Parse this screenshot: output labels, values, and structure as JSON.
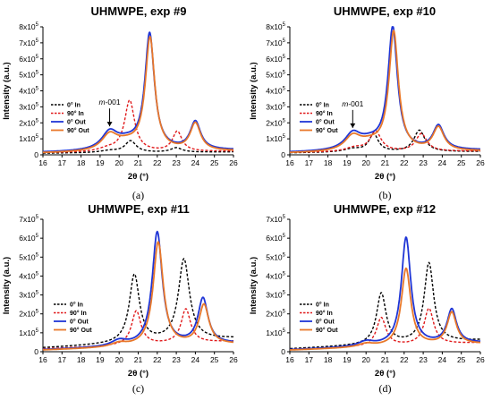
{
  "chart_data": [
    {
      "type": "line",
      "title": "UHMWPE, exp #9",
      "caption": "(a)",
      "xlabel": "2θ (°)",
      "ylabel": "Intensity (a.u.)",
      "xlim": [
        16,
        26
      ],
      "ylim": [
        0,
        800000
      ],
      "x_ticks": [
        "16",
        "17",
        "18",
        "19",
        "20",
        "21",
        "22",
        "23",
        "24",
        "25",
        "26"
      ],
      "y_ticks": [
        {
          "value": 0,
          "mant": "0",
          "exp": ""
        },
        {
          "value": 100000,
          "mant": "1x10",
          "exp": "5"
        },
        {
          "value": 200000,
          "mant": "2x10",
          "exp": "5"
        },
        {
          "value": 300000,
          "mant": "3x10",
          "exp": "5"
        },
        {
          "value": 400000,
          "mant": "4x10",
          "exp": "5"
        },
        {
          "value": 500000,
          "mant": "5x10",
          "exp": "5"
        },
        {
          "value": 600000,
          "mant": "6x10",
          "exp": "5"
        },
        {
          "value": 700000,
          "mant": "7x10",
          "exp": "5"
        },
        {
          "value": 800000,
          "mant": "8x10",
          "exp": "5"
        }
      ],
      "annotation": {
        "text": "m-001",
        "x": 19.5
      },
      "series": [
        {
          "name": "0° In",
          "color": "#000000",
          "dashed": true,
          "base": 10000,
          "baseSlope": 800,
          "peaks": [
            [
              19.5,
              12000,
              0.6
            ],
            [
              20.6,
              72000,
              0.35
            ],
            [
              23.0,
              28000,
              0.35
            ]
          ]
        },
        {
          "name": "90° In",
          "color": "#e0191a",
          "dashed": true,
          "base": 12000,
          "baseSlope": 1000,
          "peaks": [
            [
              19.4,
              20000,
              0.6
            ],
            [
              20.55,
              320000,
              0.32
            ],
            [
              23.05,
              125000,
              0.3
            ]
          ]
        },
        {
          "name": "0° Out",
          "color": "#1f35d6",
          "dashed": false,
          "base": 14000,
          "baseSlope": 1400,
          "peaks": [
            [
              19.5,
              105000,
              0.5
            ],
            [
              20.4,
              50000,
              0.8
            ],
            [
              21.6,
              720000,
              0.3
            ],
            [
              24.0,
              175000,
              0.33
            ]
          ]
        },
        {
          "name": "90° Out",
          "color": "#e8782a",
          "dashed": false,
          "base": 10000,
          "baseSlope": 1200,
          "peaks": [
            [
              19.5,
              95000,
              0.5
            ],
            [
              20.4,
              45000,
              0.8
            ],
            [
              21.62,
              700000,
              0.3
            ],
            [
              24.0,
              170000,
              0.33
            ]
          ]
        }
      ]
    },
    {
      "type": "line",
      "title": "UHMWPE, exp #10",
      "caption": "(b)",
      "xlabel": "2θ (°)",
      "ylabel": "Intensity (a.u.)",
      "xlim": [
        16,
        26
      ],
      "ylim": [
        0,
        800000
      ],
      "x_ticks": [
        "16",
        "17",
        "18",
        "19",
        "20",
        "21",
        "22",
        "23",
        "24",
        "25",
        "26"
      ],
      "y_ticks": [
        {
          "value": 0,
          "mant": "0",
          "exp": ""
        },
        {
          "value": 100000,
          "mant": "1x10",
          "exp": "5"
        },
        {
          "value": 200000,
          "mant": "2x10",
          "exp": "5"
        },
        {
          "value": 300000,
          "mant": "3x10",
          "exp": "5"
        },
        {
          "value": 400000,
          "mant": "4x10",
          "exp": "5"
        },
        {
          "value": 500000,
          "mant": "5x10",
          "exp": "5"
        },
        {
          "value": 600000,
          "mant": "6x10",
          "exp": "5"
        },
        {
          "value": 700000,
          "mant": "7x10",
          "exp": "5"
        },
        {
          "value": 800000,
          "mant": "8x10",
          "exp": "5"
        }
      ],
      "annotation": {
        "text": "m-001",
        "x": 19.3
      },
      "series": [
        {
          "name": "0° In",
          "color": "#000000",
          "dashed": true,
          "base": 12000,
          "baseSlope": 800,
          "peaks": [
            [
              19.3,
              20000,
              0.6
            ],
            [
              20.4,
              110000,
              0.3
            ],
            [
              22.8,
              135000,
              0.35
            ]
          ]
        },
        {
          "name": "90° In",
          "color": "#e0191a",
          "dashed": true,
          "base": 14000,
          "baseSlope": 900,
          "peaks": [
            [
              19.4,
              25000,
              0.6
            ],
            [
              20.5,
              125000,
              0.35
            ],
            [
              22.9,
              110000,
              0.35
            ]
          ]
        },
        {
          "name": "0° Out",
          "color": "#1f35d6",
          "dashed": false,
          "base": 14000,
          "baseSlope": 1400,
          "peaks": [
            [
              19.3,
              95000,
              0.5
            ],
            [
              20.2,
              50000,
              0.8
            ],
            [
              21.4,
              760000,
              0.3
            ],
            [
              23.8,
              150000,
              0.35
            ]
          ]
        },
        {
          "name": "90° Out",
          "color": "#e8782a",
          "dashed": false,
          "base": 10000,
          "baseSlope": 1200,
          "peaks": [
            [
              19.3,
              85000,
              0.5
            ],
            [
              20.2,
              45000,
              0.8
            ],
            [
              21.45,
              740000,
              0.3
            ],
            [
              23.8,
              145000,
              0.35
            ]
          ]
        }
      ]
    },
    {
      "type": "line",
      "title": "UHMWPE, exp #11",
      "caption": "(c)",
      "xlabel": "2θ (°)",
      "ylabel": "Intensity (a.u.)",
      "xlim": [
        16,
        26
      ],
      "ylim": [
        0,
        700000
      ],
      "x_ticks": [
        "16",
        "17",
        "18",
        "19",
        "20",
        "21",
        "22",
        "23",
        "24",
        "25",
        "26"
      ],
      "y_ticks": [
        {
          "value": 0,
          "mant": "0",
          "exp": ""
        },
        {
          "value": 100000,
          "mant": "1x10",
          "exp": "5"
        },
        {
          "value": 200000,
          "mant": "2x10",
          "exp": "5"
        },
        {
          "value": 300000,
          "mant": "3x10",
          "exp": "5"
        },
        {
          "value": 400000,
          "mant": "4x10",
          "exp": "5"
        },
        {
          "value": 500000,
          "mant": "5x10",
          "exp": "5"
        },
        {
          "value": 600000,
          "mant": "6x10",
          "exp": "5"
        },
        {
          "value": 700000,
          "mant": "7x10",
          "exp": "5"
        }
      ],
      "series": [
        {
          "name": "0° In",
          "color": "#000000",
          "dashed": true,
          "base": 20000,
          "baseSlope": 5000,
          "peaks": [
            [
              20.8,
              360000,
              0.32
            ],
            [
              23.4,
              430000,
              0.35
            ]
          ]
        },
        {
          "name": "90° In",
          "color": "#e0191a",
          "dashed": true,
          "base": 15000,
          "baseSlope": 4000,
          "peaks": [
            [
              20.9,
              180000,
              0.3
            ],
            [
              23.5,
              180000,
              0.3
            ]
          ]
        },
        {
          "name": "0° Out",
          "color": "#1f35d6",
          "dashed": false,
          "base": 10000,
          "baseSlope": 3200,
          "peaks": [
            [
              20.0,
              30000,
              0.5
            ],
            [
              22.0,
              600000,
              0.32
            ],
            [
              24.4,
              240000,
              0.32
            ]
          ]
        },
        {
          "name": "90° Out",
          "color": "#e8782a",
          "dashed": false,
          "base": 8000,
          "baseSlope": 3000,
          "peaks": [
            [
              20.0,
              20000,
              0.5
            ],
            [
              22.05,
              550000,
              0.32
            ],
            [
              24.45,
              210000,
              0.32
            ]
          ]
        }
      ]
    },
    {
      "type": "line",
      "title": "UHMWPE, exp #12",
      "caption": "(d)",
      "xlabel": "2θ (°)",
      "ylabel": "Intensity (a.u.)",
      "xlim": [
        16,
        26
      ],
      "ylim": [
        0,
        700000
      ],
      "x_ticks": [
        "16",
        "17",
        "18",
        "19",
        "20",
        "21",
        "22",
        "23",
        "24",
        "25",
        "26"
      ],
      "y_ticks": [
        {
          "value": 0,
          "mant": "0",
          "exp": ""
        },
        {
          "value": 100000,
          "mant": "1x10",
          "exp": "5"
        },
        {
          "value": 200000,
          "mant": "2x10",
          "exp": "5"
        },
        {
          "value": 300000,
          "mant": "3x10",
          "exp": "5"
        },
        {
          "value": 400000,
          "mant": "4x10",
          "exp": "5"
        },
        {
          "value": 500000,
          "mant": "5x10",
          "exp": "5"
        },
        {
          "value": 600000,
          "mant": "6x10",
          "exp": "5"
        },
        {
          "value": 700000,
          "mant": "7x10",
          "exp": "5"
        }
      ],
      "series": [
        {
          "name": "0° In",
          "color": "#000000",
          "dashed": true,
          "base": 15000,
          "baseSlope": 4500,
          "peaks": [
            [
              20.8,
              270000,
              0.3
            ],
            [
              23.3,
              420000,
              0.3
            ]
          ]
        },
        {
          "name": "90° In",
          "color": "#e0191a",
          "dashed": true,
          "base": 12000,
          "baseSlope": 3500,
          "peaks": [
            [
              20.8,
              150000,
              0.3
            ],
            [
              23.3,
              190000,
              0.3
            ]
          ]
        },
        {
          "name": "0° Out",
          "color": "#1f35d6",
          "dashed": false,
          "base": 10000,
          "baseSlope": 3500,
          "peaks": [
            [
              20.0,
              25000,
              0.5
            ],
            [
              22.1,
              570000,
              0.3
            ],
            [
              24.5,
              180000,
              0.3
            ]
          ]
        },
        {
          "name": "90° Out",
          "color": "#e8782a",
          "dashed": false,
          "base": 8000,
          "baseSlope": 3200,
          "peaks": [
            [
              20.0,
              18000,
              0.5
            ],
            [
              22.1,
              410000,
              0.3
            ],
            [
              24.5,
              170000,
              0.3
            ]
          ]
        }
      ]
    }
  ]
}
